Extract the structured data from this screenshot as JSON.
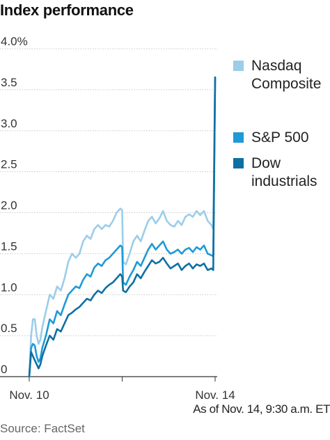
{
  "chart_data": {
    "type": "line",
    "title": "Index performance",
    "xlabel": "",
    "ylabel": "",
    "x_tick_labels": [
      "Nov. 10",
      "Nov. 14"
    ],
    "y_ticks": [
      {
        "value": 0,
        "label": "0"
      },
      {
        "value": 0.5,
        "label": "0.5"
      },
      {
        "value": 1.0,
        "label": "1.0"
      },
      {
        "value": 1.5,
        "label": "1.5"
      },
      {
        "value": 2.0,
        "label": "2.0"
      },
      {
        "value": 2.5,
        "label": "2.5"
      },
      {
        "value": 3.0,
        "label": "3.0"
      },
      {
        "value": 3.5,
        "label": "3.5"
      },
      {
        "value": 4.0,
        "label": "4.0%"
      }
    ],
    "ylim": [
      0,
      4.0
    ],
    "xlim": [
      0,
      1
    ],
    "grid": "horizontal",
    "legend_position": "right",
    "series": [
      {
        "name": "Nasdaq Composite",
        "color": "#9ccdea",
        "points": [
          [
            0.0,
            0.0
          ],
          [
            0.01,
            0.5
          ],
          [
            0.02,
            0.7
          ],
          [
            0.03,
            0.7
          ],
          [
            0.04,
            0.5
          ],
          [
            0.05,
            0.4
          ],
          [
            0.06,
            0.45
          ],
          [
            0.07,
            0.6
          ],
          [
            0.09,
            0.8
          ],
          [
            0.11,
            1.0
          ],
          [
            0.13,
            0.95
          ],
          [
            0.15,
            1.1
          ],
          [
            0.17,
            1.05
          ],
          [
            0.19,
            1.2
          ],
          [
            0.21,
            1.4
          ],
          [
            0.23,
            1.5
          ],
          [
            0.25,
            1.45
          ],
          [
            0.27,
            1.5
          ],
          [
            0.29,
            1.65
          ],
          [
            0.31,
            1.72
          ],
          [
            0.33,
            1.68
          ],
          [
            0.35,
            1.8
          ],
          [
            0.37,
            1.85
          ],
          [
            0.39,
            1.8
          ],
          [
            0.41,
            1.85
          ],
          [
            0.43,
            1.83
          ],
          [
            0.45,
            1.9
          ],
          [
            0.47,
            2.0
          ],
          [
            0.49,
            2.05
          ],
          [
            0.5,
            2.03
          ],
          [
            0.505,
            1.4
          ],
          [
            0.52,
            1.37
          ],
          [
            0.54,
            1.5
          ],
          [
            0.56,
            1.65
          ],
          [
            0.58,
            1.72
          ],
          [
            0.6,
            1.65
          ],
          [
            0.62,
            1.78
          ],
          [
            0.64,
            1.9
          ],
          [
            0.66,
            1.95
          ],
          [
            0.68,
            1.87
          ],
          [
            0.7,
            1.93
          ],
          [
            0.72,
            2.02
          ],
          [
            0.74,
            1.9
          ],
          [
            0.76,
            1.85
          ],
          [
            0.78,
            1.83
          ],
          [
            0.8,
            1.9
          ],
          [
            0.82,
            1.85
          ],
          [
            0.84,
            1.95
          ],
          [
            0.86,
            1.98
          ],
          [
            0.88,
            1.95
          ],
          [
            0.9,
            2.02
          ],
          [
            0.92,
            1.97
          ],
          [
            0.94,
            2.02
          ],
          [
            0.96,
            1.9
          ],
          [
            0.98,
            1.85
          ],
          [
            0.99,
            1.8
          ],
          [
            1.0,
            3.65
          ]
        ]
      },
      {
        "name": "S&P 500",
        "color": "#1f9ad6",
        "points": [
          [
            0.0,
            0.0
          ],
          [
            0.01,
            0.35
          ],
          [
            0.02,
            0.4
          ],
          [
            0.03,
            0.38
          ],
          [
            0.04,
            0.25
          ],
          [
            0.05,
            0.18
          ],
          [
            0.06,
            0.22
          ],
          [
            0.07,
            0.35
          ],
          [
            0.09,
            0.5
          ],
          [
            0.11,
            0.7
          ],
          [
            0.13,
            0.65
          ],
          [
            0.15,
            0.8
          ],
          [
            0.17,
            0.75
          ],
          [
            0.19,
            0.88
          ],
          [
            0.21,
            1.0
          ],
          [
            0.23,
            1.05
          ],
          [
            0.25,
            1.1
          ],
          [
            0.27,
            1.08
          ],
          [
            0.29,
            1.18
          ],
          [
            0.31,
            1.25
          ],
          [
            0.33,
            1.22
          ],
          [
            0.35,
            1.33
          ],
          [
            0.37,
            1.38
          ],
          [
            0.39,
            1.35
          ],
          [
            0.41,
            1.42
          ],
          [
            0.43,
            1.45
          ],
          [
            0.45,
            1.5
          ],
          [
            0.47,
            1.55
          ],
          [
            0.49,
            1.6
          ],
          [
            0.5,
            1.58
          ],
          [
            0.505,
            1.15
          ],
          [
            0.52,
            1.12
          ],
          [
            0.54,
            1.22
          ],
          [
            0.56,
            1.3
          ],
          [
            0.58,
            1.4
          ],
          [
            0.6,
            1.35
          ],
          [
            0.62,
            1.45
          ],
          [
            0.64,
            1.55
          ],
          [
            0.66,
            1.62
          ],
          [
            0.68,
            1.55
          ],
          [
            0.7,
            1.6
          ],
          [
            0.72,
            1.65
          ],
          [
            0.74,
            1.55
          ],
          [
            0.76,
            1.5
          ],
          [
            0.78,
            1.52
          ],
          [
            0.8,
            1.55
          ],
          [
            0.82,
            1.5
          ],
          [
            0.84,
            1.55
          ],
          [
            0.86,
            1.57
          ],
          [
            0.88,
            1.52
          ],
          [
            0.9,
            1.58
          ],
          [
            0.92,
            1.55
          ],
          [
            0.94,
            1.6
          ],
          [
            0.96,
            1.5
          ],
          [
            0.98,
            1.48
          ],
          [
            0.99,
            1.47
          ],
          [
            1.0,
            3.65
          ]
        ]
      },
      {
        "name": "Dow industrials",
        "color": "#0e6fa3",
        "points": [
          [
            0.0,
            0.0
          ],
          [
            0.01,
            0.3
          ],
          [
            0.02,
            0.25
          ],
          [
            0.03,
            0.2
          ],
          [
            0.04,
            0.15
          ],
          [
            0.05,
            0.1
          ],
          [
            0.06,
            0.15
          ],
          [
            0.07,
            0.25
          ],
          [
            0.09,
            0.38
          ],
          [
            0.11,
            0.5
          ],
          [
            0.13,
            0.45
          ],
          [
            0.15,
            0.58
          ],
          [
            0.17,
            0.55
          ],
          [
            0.19,
            0.65
          ],
          [
            0.21,
            0.75
          ],
          [
            0.23,
            0.78
          ],
          [
            0.25,
            0.82
          ],
          [
            0.27,
            0.85
          ],
          [
            0.29,
            0.9
          ],
          [
            0.31,
            0.95
          ],
          [
            0.33,
            0.93
          ],
          [
            0.35,
            1.0
          ],
          [
            0.37,
            1.05
          ],
          [
            0.39,
            1.02
          ],
          [
            0.41,
            1.08
          ],
          [
            0.43,
            1.12
          ],
          [
            0.45,
            1.15
          ],
          [
            0.47,
            1.2
          ],
          [
            0.49,
            1.25
          ],
          [
            0.5,
            1.22
          ],
          [
            0.505,
            1.05
          ],
          [
            0.52,
            1.03
          ],
          [
            0.54,
            1.1
          ],
          [
            0.56,
            1.15
          ],
          [
            0.58,
            1.25
          ],
          [
            0.6,
            1.2
          ],
          [
            0.62,
            1.28
          ],
          [
            0.64,
            1.35
          ],
          [
            0.66,
            1.42
          ],
          [
            0.68,
            1.38
          ],
          [
            0.7,
            1.4
          ],
          [
            0.72,
            1.45
          ],
          [
            0.74,
            1.38
          ],
          [
            0.76,
            1.32
          ],
          [
            0.78,
            1.35
          ],
          [
            0.8,
            1.38
          ],
          [
            0.82,
            1.3
          ],
          [
            0.84,
            1.35
          ],
          [
            0.86,
            1.38
          ],
          [
            0.88,
            1.32
          ],
          [
            0.9,
            1.37
          ],
          [
            0.92,
            1.35
          ],
          [
            0.94,
            1.38
          ],
          [
            0.96,
            1.3
          ],
          [
            0.98,
            1.32
          ],
          [
            0.99,
            1.3
          ],
          [
            1.0,
            3.65
          ]
        ]
      }
    ]
  },
  "note": "As of Nov. 14, 9:30 a.m. ET",
  "source": "Source: FactSet"
}
